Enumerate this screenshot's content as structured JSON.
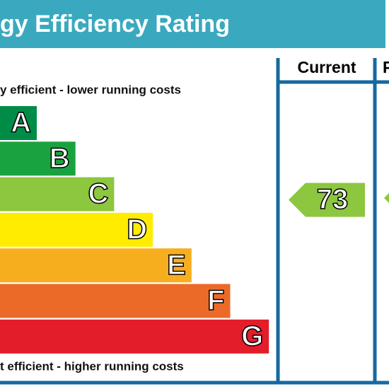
{
  "header": {
    "title": "gy Efficiency Rating"
  },
  "top_note": "y efficient - lower running costs",
  "bottom_note": "t efficient - higher running costs",
  "columns": [
    "Current",
    "P"
  ],
  "bands": [
    {
      "letter": "A",
      "color": "#008c46"
    },
    {
      "letter": "B",
      "color": "#1ba240"
    },
    {
      "letter": "C",
      "color": "#8dc63f"
    },
    {
      "letter": "D",
      "color": "#ffec00"
    },
    {
      "letter": "E",
      "color": "#f7ae1e"
    },
    {
      "letter": "F",
      "color": "#ec6a28"
    },
    {
      "letter": "G",
      "color": "#e31d2a"
    }
  ],
  "current": {
    "value": 73,
    "band": 2
  }
}
